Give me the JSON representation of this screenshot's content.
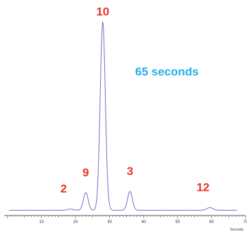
{
  "chart_data": {
    "type": "line",
    "title": "",
    "xlabel": "Seconds",
    "ylabel": "",
    "xlim": [
      -1,
      70
    ],
    "ylim": [
      0,
      100
    ],
    "x_ticks": [
      "10",
      "20",
      "30",
      "40",
      "50",
      "60",
      "70"
    ],
    "grid": false,
    "legend": "none",
    "annotation": "65 seconds",
    "colors": {
      "line": "#6b6fc6",
      "peak_label": "#e8332a",
      "annotation": "#1eb1e7",
      "axis": "#333333"
    },
    "baseline": 0.6,
    "peaks": [
      {
        "label": "2",
        "x": 18.5,
        "height": 0.6,
        "width": 0.9
      },
      {
        "label": "9",
        "x": 23.0,
        "height": 9.3,
        "width": 0.7
      },
      {
        "label": "10",
        "x": 28.0,
        "height": 100,
        "width": 0.75
      },
      {
        "label": "3",
        "x": 36.0,
        "height": 10.0,
        "width": 0.7
      },
      {
        "label": "12",
        "x": 59.5,
        "height": 1.4,
        "width": 0.9
      }
    ]
  }
}
